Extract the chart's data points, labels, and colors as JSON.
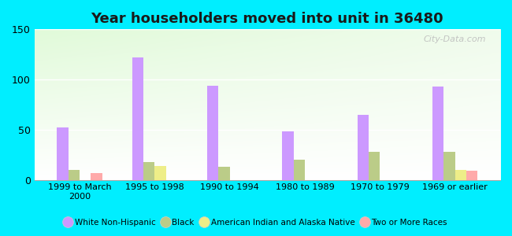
{
  "title": "Year householders moved into unit in 36480",
  "categories": [
    "1999 to March\n2000",
    "1995 to 1998",
    "1990 to 1994",
    "1980 to 1989",
    "1970 to 1979",
    "1969 or earlier"
  ],
  "series": {
    "White Non-Hispanic": [
      52,
      122,
      94,
      48,
      65,
      93
    ],
    "Black": [
      10,
      18,
      13,
      20,
      28,
      28
    ],
    "American Indian and Alaska Native": [
      0,
      14,
      0,
      0,
      0,
      10
    ],
    "Two or More Races": [
      7,
      0,
      0,
      0,
      0,
      9
    ]
  },
  "colors": {
    "White Non-Hispanic": "#cc99ff",
    "Black": "#bbcc88",
    "American Indian and Alaska Native": "#eeee88",
    "Two or More Races": "#ffaaaa"
  },
  "ylim": [
    0,
    150
  ],
  "yticks": [
    0,
    50,
    100,
    150
  ],
  "background_color": "#00eeff",
  "bar_width": 0.15,
  "title_fontsize": 13,
  "watermark": "City-Data.com"
}
